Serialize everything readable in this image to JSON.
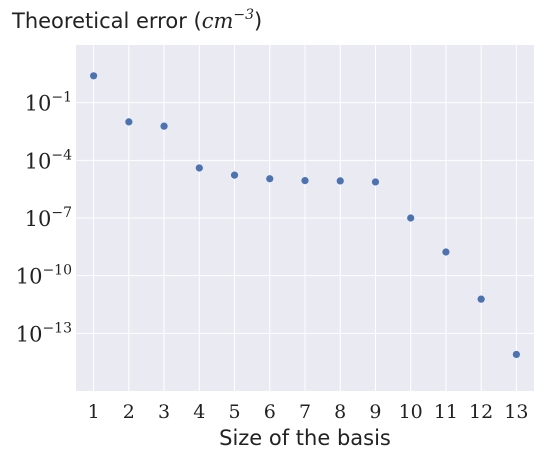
{
  "chart_data": {
    "type": "scatter",
    "title": "Theoretical error",
    "title_unit_base": "cm",
    "title_unit_exp": "−3",
    "xlabel": "Size of the basis",
    "ylabel": "",
    "yscale": "log",
    "x_ticks": [
      "1",
      "2",
      "3",
      "4",
      "5",
      "6",
      "7",
      "8",
      "9",
      "10",
      "11",
      "12",
      "13"
    ],
    "y_ticks": [
      {
        "base": "10",
        "exp": "−1",
        "value": 0.1
      },
      {
        "base": "10",
        "exp": "−4",
        "value": 0.0001
      },
      {
        "base": "10",
        "exp": "−7",
        "value": 1e-07
      },
      {
        "base": "10",
        "exp": "−10",
        "value": 1e-10
      },
      {
        "base": "10",
        "exp": "−13",
        "value": 1e-13
      }
    ],
    "xlim": [
      0.5,
      13.5
    ],
    "ylim": [
      1e-16,
      100
    ],
    "grid": true,
    "background": "#EAEAF2",
    "marker_color": "#4C72B0",
    "points": [
      {
        "x": 1,
        "y": 2.5
      },
      {
        "x": 2,
        "y": 0.01
      },
      {
        "x": 3,
        "y": 0.006
      },
      {
        "x": 4,
        "y": 4e-05
      },
      {
        "x": 5,
        "y": 1.7e-05
      },
      {
        "x": 6,
        "y": 1.1e-05
      },
      {
        "x": 7,
        "y": 8.8e-06
      },
      {
        "x": 8,
        "y": 8.5e-06
      },
      {
        "x": 9,
        "y": 7.5e-06
      },
      {
        "x": 10,
        "y": 1e-07
      },
      {
        "x": 11,
        "y": 1.7e-09
      },
      {
        "x": 12,
        "y": 6e-12
      },
      {
        "x": 13,
        "y": 8e-15
      }
    ]
  }
}
